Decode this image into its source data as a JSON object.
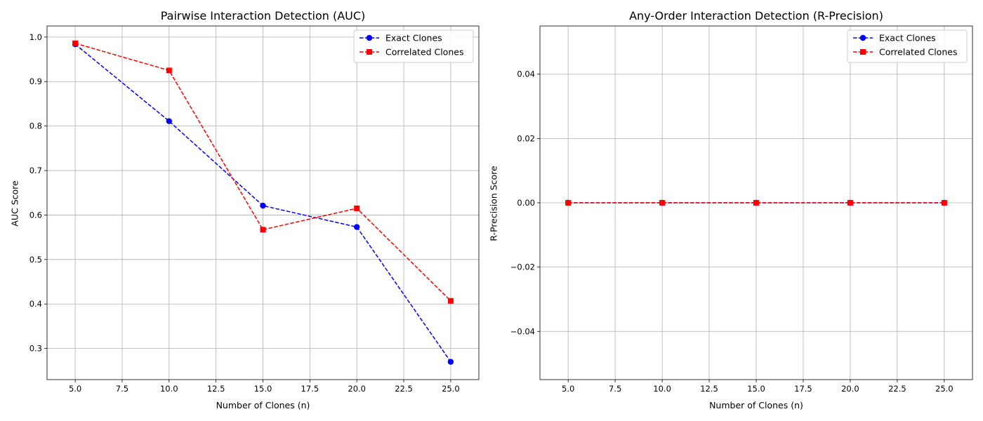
{
  "figure": {
    "background": "#ffffff"
  },
  "chart_data": [
    {
      "type": "line",
      "title": "Pairwise Interaction Detection (AUC)",
      "xlabel": "Number of Clones (n)",
      "ylabel": "AUC Score",
      "x": [
        5,
        10,
        15,
        20,
        25
      ],
      "xlim": [
        3.5,
        26.5
      ],
      "ylim": [
        0.23,
        1.025
      ],
      "xticks": [
        5.0,
        7.5,
        10.0,
        12.5,
        15.0,
        17.5,
        20.0,
        22.5,
        25.0
      ],
      "xtick_labels": [
        "5.0",
        "7.5",
        "10.0",
        "12.5",
        "15.0",
        "17.5",
        "20.0",
        "22.5",
        "25.0"
      ],
      "yticks": [
        0.3,
        0.4,
        0.5,
        0.6,
        0.7,
        0.8,
        0.9,
        1.0
      ],
      "ytick_labels": [
        "0.3",
        "0.4",
        "0.5",
        "0.6",
        "0.7",
        "0.8",
        "0.9",
        "1.0"
      ],
      "grid": true,
      "legend": "top-right",
      "series": [
        {
          "name": "Exact Clones",
          "values": [
            0.984,
            0.811,
            0.621,
            0.573,
            0.27
          ],
          "color": "#0000ff",
          "marker": "circle",
          "linestyle": "dashed"
        },
        {
          "name": "Correlated Clones",
          "values": [
            0.986,
            0.925,
            0.567,
            0.615,
            0.407
          ],
          "color": "#ff0000",
          "marker": "square",
          "linestyle": "dashed"
        }
      ]
    },
    {
      "type": "line",
      "title": "Any-Order Interaction Detection (R-Precision)",
      "xlabel": "Number of Clones (n)",
      "ylabel": "R-Precision Score",
      "x": [
        5,
        10,
        15,
        20,
        25
      ],
      "xlim": [
        3.5,
        26.5
      ],
      "ylim": [
        -0.055,
        0.055
      ],
      "xticks": [
        5.0,
        7.5,
        10.0,
        12.5,
        15.0,
        17.5,
        20.0,
        22.5,
        25.0
      ],
      "xtick_labels": [
        "5.0",
        "7.5",
        "10.0",
        "12.5",
        "15.0",
        "17.5",
        "20.0",
        "22.5",
        "25.0"
      ],
      "yticks": [
        -0.04,
        -0.02,
        0.0,
        0.02,
        0.04
      ],
      "ytick_labels": [
        "−0.04",
        "−0.02",
        "0.00",
        "0.02",
        "0.04"
      ],
      "grid": true,
      "legend": "top-right",
      "series": [
        {
          "name": "Exact Clones",
          "values": [
            0,
            0,
            0,
            0,
            0
          ],
          "color": "#0000ff",
          "marker": "circle",
          "linestyle": "dashed"
        },
        {
          "name": "Correlated Clones",
          "values": [
            0,
            0,
            0,
            0,
            0
          ],
          "color": "#ff0000",
          "marker": "square",
          "linestyle": "dashed"
        }
      ]
    }
  ]
}
